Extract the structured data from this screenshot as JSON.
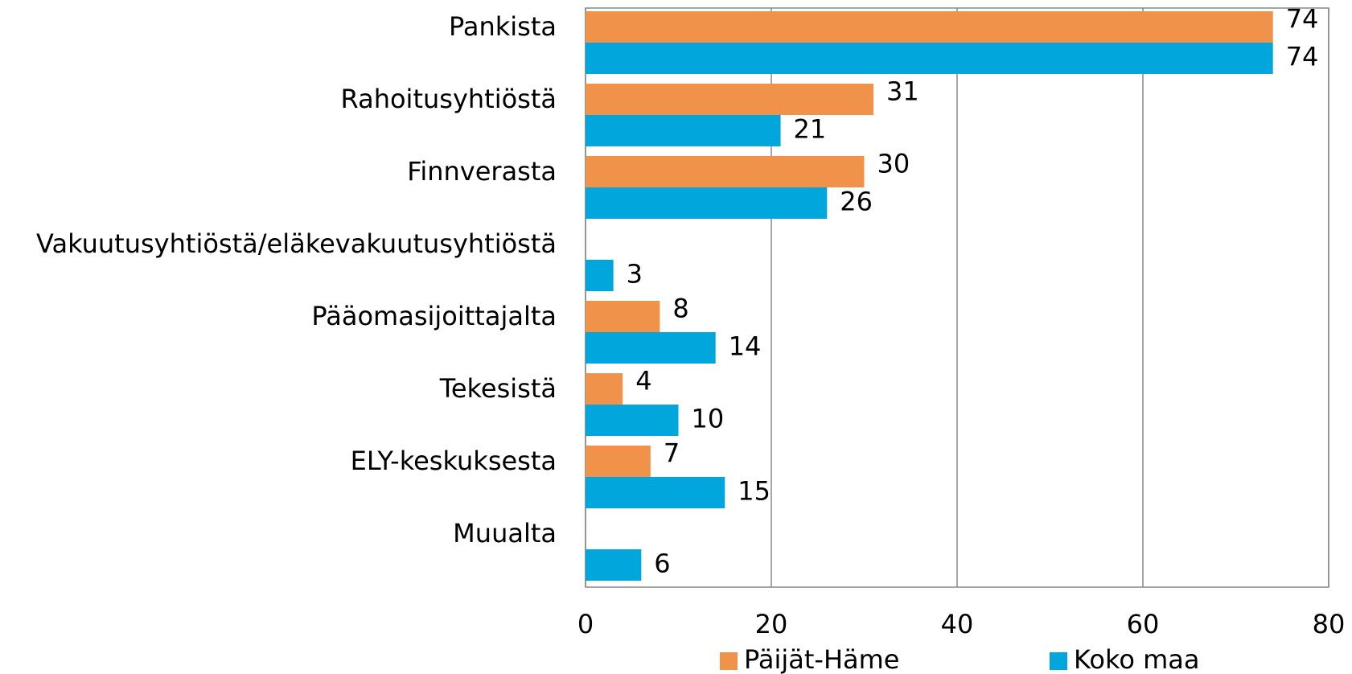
{
  "chart_data": {
    "type": "barh",
    "categories": [
      "Pankista",
      "Rahoitusyhtiöstä",
      "Finnverasta",
      "Vakuutusyhtiöstä/eläkevakuutusyhtiöstä",
      "Pääomasijoittajalta",
      "Tekesistä",
      "ELY-keskuksesta",
      "Muualta"
    ],
    "series": [
      {
        "name": "Päijät-Häme",
        "color": "#f0924a",
        "values": [
          74,
          31,
          30,
          null,
          8,
          4,
          7,
          null
        ]
      },
      {
        "name": "Koko maa",
        "color": "#00a6dc",
        "values": [
          74,
          21,
          26,
          3,
          14,
          10,
          15,
          6
        ]
      }
    ],
    "xlim": [
      0,
      80
    ],
    "xticks": [
      0,
      20,
      40,
      60,
      80
    ],
    "grid": true,
    "legend": "bottom"
  }
}
